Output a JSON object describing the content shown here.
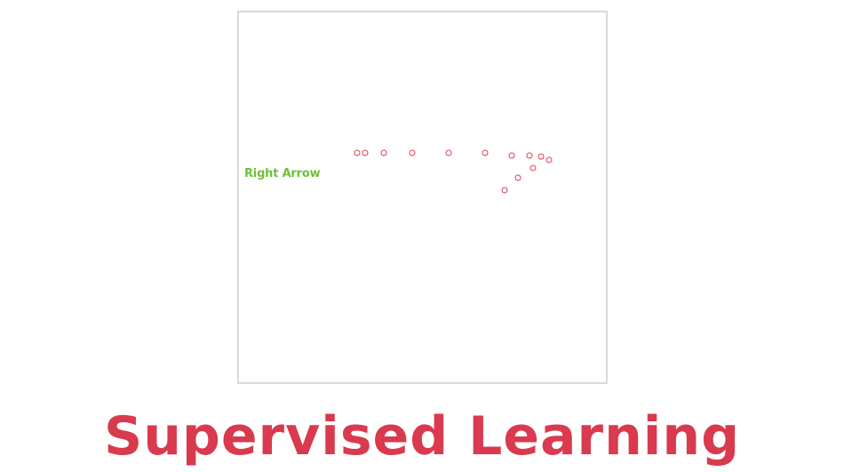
{
  "canvas": {
    "gesture_label": "Right Arrow",
    "label_color": "#6fbf3a",
    "point_color": "#e0404f",
    "border_color": "#d9d9d9"
  },
  "title": {
    "text": "Supervised Learning",
    "color": "#d93a4e"
  }
}
